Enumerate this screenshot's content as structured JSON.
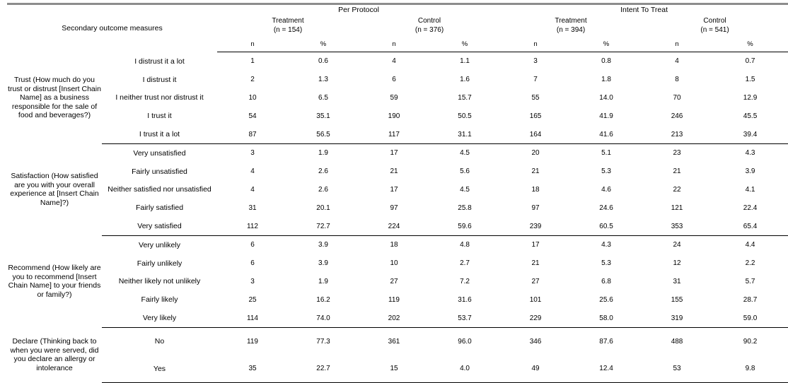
{
  "header": {
    "title": "Secondary outcome measures",
    "per_protocol": "Per Protocol",
    "intent_to_treat": "Intent To Treat",
    "pp_treatment_label": "Treatment",
    "pp_treatment_n": "(n = 154)",
    "pp_control_label": "Control",
    "pp_control_n": "(n = 376)",
    "itt_treatment_label": "Treatment",
    "itt_treatment_n": "(n = 394)",
    "itt_control_label": "Control",
    "itt_control_n": "(n = 541)",
    "n": "n",
    "pct": "%"
  },
  "groups": [
    {
      "label": "Trust (How much do you trust or distrust [Insert Chain Name] as a business responsible for the sale of food and beverages?)",
      "rows": [
        {
          "label": "I distrust it a lot",
          "values": [
            "1",
            "0.6",
            "4",
            "1.1",
            "3",
            "0.8",
            "4",
            "0.7"
          ]
        },
        {
          "label": "I distrust it",
          "values": [
            "2",
            "1.3",
            "6",
            "1.6",
            "7",
            "1.8",
            "8",
            "1.5"
          ]
        },
        {
          "label": "I neither trust nor distrust it",
          "values": [
            "10",
            "6.5",
            "59",
            "15.7",
            "55",
            "14.0",
            "70",
            "12.9"
          ]
        },
        {
          "label": "I trust it",
          "values": [
            "54",
            "35.1",
            "190",
            "50.5",
            "165",
            "41.9",
            "246",
            "45.5"
          ]
        },
        {
          "label": "I trust it a lot",
          "values": [
            "87",
            "56.5",
            "117",
            "31.1",
            "164",
            "41.6",
            "213",
            "39.4"
          ]
        }
      ]
    },
    {
      "label": "Satisfaction (How satisfied are you with your overall experience at [Insert Chain Name]?)",
      "rows": [
        {
          "label": "Very unsatisfied",
          "values": [
            "3",
            "1.9",
            "17",
            "4.5",
            "20",
            "5.1",
            "23",
            "4.3"
          ]
        },
        {
          "label": "Fairly unsatisfied",
          "values": [
            "4",
            "2.6",
            "21",
            "5.6",
            "21",
            "5.3",
            "21",
            "3.9"
          ]
        },
        {
          "label": "Neither satisfied nor unsatisfied",
          "values": [
            "4",
            "2.6",
            "17",
            "4.5",
            "18",
            "4.6",
            "22",
            "4.1"
          ]
        },
        {
          "label": "Fairly satisfied",
          "values": [
            "31",
            "20.1",
            "97",
            "25.8",
            "97",
            "24.6",
            "121",
            "22.4"
          ]
        },
        {
          "label": "Very satisfied",
          "values": [
            "112",
            "72.7",
            "224",
            "59.6",
            "239",
            "60.5",
            "353",
            "65.4"
          ]
        }
      ]
    },
    {
      "label": "Recommend (How likely are you to recommend [Insert Chain Name] to your friends or family?)",
      "rows": [
        {
          "label": "Very unlikely",
          "values": [
            "6",
            "3.9",
            "18",
            "4.8",
            "17",
            "4.3",
            "24",
            "4.4"
          ]
        },
        {
          "label": "Fairly unlikely",
          "values": [
            "6",
            "3.9",
            "10",
            "2.7",
            "21",
            "5.3",
            "12",
            "2.2"
          ]
        },
        {
          "label": "Neither likely not unlikely",
          "values": [
            "3",
            "1.9",
            "27",
            "7.2",
            "27",
            "6.8",
            "31",
            "5.7"
          ]
        },
        {
          "label": "Fairly likely",
          "values": [
            "25",
            "16.2",
            "119",
            "31.6",
            "101",
            "25.6",
            "155",
            "28.7"
          ]
        },
        {
          "label": "Very likely",
          "values": [
            "114",
            "74.0",
            "202",
            "53.7",
            "229",
            "58.0",
            "319",
            "59.0"
          ]
        }
      ]
    },
    {
      "label": "Declare (Thinking back to when you were served, did you declare an allergy or intolerance",
      "rows": [
        {
          "label": "No",
          "values": [
            "119",
            "77.3",
            "361",
            "96.0",
            "346",
            "87.6",
            "488",
            "90.2"
          ]
        },
        {
          "label": "Yes",
          "values": [
            "35",
            "22.7",
            "15",
            "4.0",
            "49",
            "12.4",
            "53",
            "9.8"
          ]
        }
      ]
    }
  ]
}
